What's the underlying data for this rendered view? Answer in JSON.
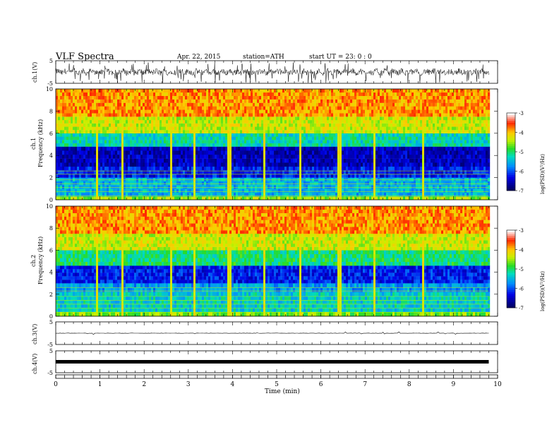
{
  "header": {
    "title": "VLF  Spectra",
    "date": "Apr. 22, 2015",
    "station": "station=ATH",
    "start": "start  UT =    23: 0  : 0"
  },
  "chart_data": [
    {
      "type": "line",
      "name_label": "ch.1(V)",
      "ylim": [
        -5,
        5
      ],
      "yticks": [
        "5",
        "-5"
      ],
      "xlim": [
        0,
        10
      ],
      "note": "noisy voltage trace spanning roughly -2 to 2 V, spikes to -5"
    },
    {
      "type": "heatmap",
      "ylabel_top": "ch.1",
      "ylabel": "Frequency  (kHz)",
      "ylim": [
        0,
        10
      ],
      "yticks": [
        "0",
        "2",
        "4",
        "6",
        "8",
        "10"
      ],
      "xlim": [
        0,
        9.8
      ],
      "colorbar": {
        "label": "log(PSD)(V²/Hz)",
        "ticks": [
          "-3",
          "-4",
          "-5",
          "-6",
          "-7"
        ],
        "range": [
          -7,
          -3
        ]
      },
      "bands": [
        {
          "fmin": 0,
          "fmax": 0.3,
          "logpsd": -4.5
        },
        {
          "fmin": 0.3,
          "fmax": 2.0,
          "logpsd": -5.5
        },
        {
          "fmin": 2.0,
          "fmax": 3.0,
          "logpsd": -6.2
        },
        {
          "fmin": 3.0,
          "fmax": 4.8,
          "logpsd": -6.5
        },
        {
          "fmin": 4.8,
          "fmax": 6.0,
          "logpsd": -5.2
        },
        {
          "fmin": 6.0,
          "fmax": 7.5,
          "logpsd": -4.3
        },
        {
          "fmin": 7.5,
          "fmax": 10,
          "logpsd": -3.8
        }
      ],
      "spike_times_min": [
        0.9,
        1.5,
        2.58,
        3.1,
        3.9,
        4.7,
        5.5,
        6.4,
        7.18,
        8.3
      ]
    },
    {
      "type": "heatmap",
      "ylabel_top": "ch.2",
      "ylabel": "Frequency  (kHz)",
      "ylim": [
        0,
        10
      ],
      "yticks": [
        "0",
        "2",
        "4",
        "6",
        "8",
        "10"
      ],
      "xlim": [
        0,
        9.8
      ],
      "colorbar": {
        "label": "log(PSD)(V²/Hz)",
        "ticks": [
          "-3",
          "-4",
          "-5",
          "-6",
          "-7"
        ],
        "range": [
          -7,
          -3
        ]
      },
      "bands": [
        {
          "fmin": 0,
          "fmax": 0.4,
          "logpsd": -4.6
        },
        {
          "fmin": 0.4,
          "fmax": 2.2,
          "logpsd": -5.3
        },
        {
          "fmin": 2.2,
          "fmax": 3.0,
          "logpsd": -5.6
        },
        {
          "fmin": 3.0,
          "fmax": 4.6,
          "logpsd": -6.2
        },
        {
          "fmin": 4.6,
          "fmax": 6.0,
          "logpsd": -5.0
        },
        {
          "fmin": 6.0,
          "fmax": 7.5,
          "logpsd": -4.3
        },
        {
          "fmin": 7.5,
          "fmax": 10,
          "logpsd": -3.8
        }
      ],
      "spike_times_min": [
        0.9,
        1.5,
        2.58,
        3.1,
        3.9,
        4.7,
        5.5,
        6.4,
        7.18,
        8.3
      ]
    },
    {
      "type": "line",
      "name_label": "ch.3(V)",
      "ylim": [
        -5,
        5
      ],
      "yticks": [
        "5",
        "-5"
      ],
      "xlim": [
        0,
        10
      ],
      "note": "flat trace near 0 V"
    },
    {
      "type": "line",
      "name_label": "ch.4(V)",
      "ylim": [
        -5,
        5
      ],
      "yticks": [
        "5",
        "-5"
      ],
      "xlim": [
        0,
        10
      ],
      "note": "thick constant band near 0 V"
    }
  ],
  "xaxis": {
    "label": "Time  (min)",
    "ticks": [
      "0",
      "1",
      "2",
      "3",
      "4",
      "5",
      "6",
      "7",
      "8",
      "9",
      "10"
    ]
  }
}
